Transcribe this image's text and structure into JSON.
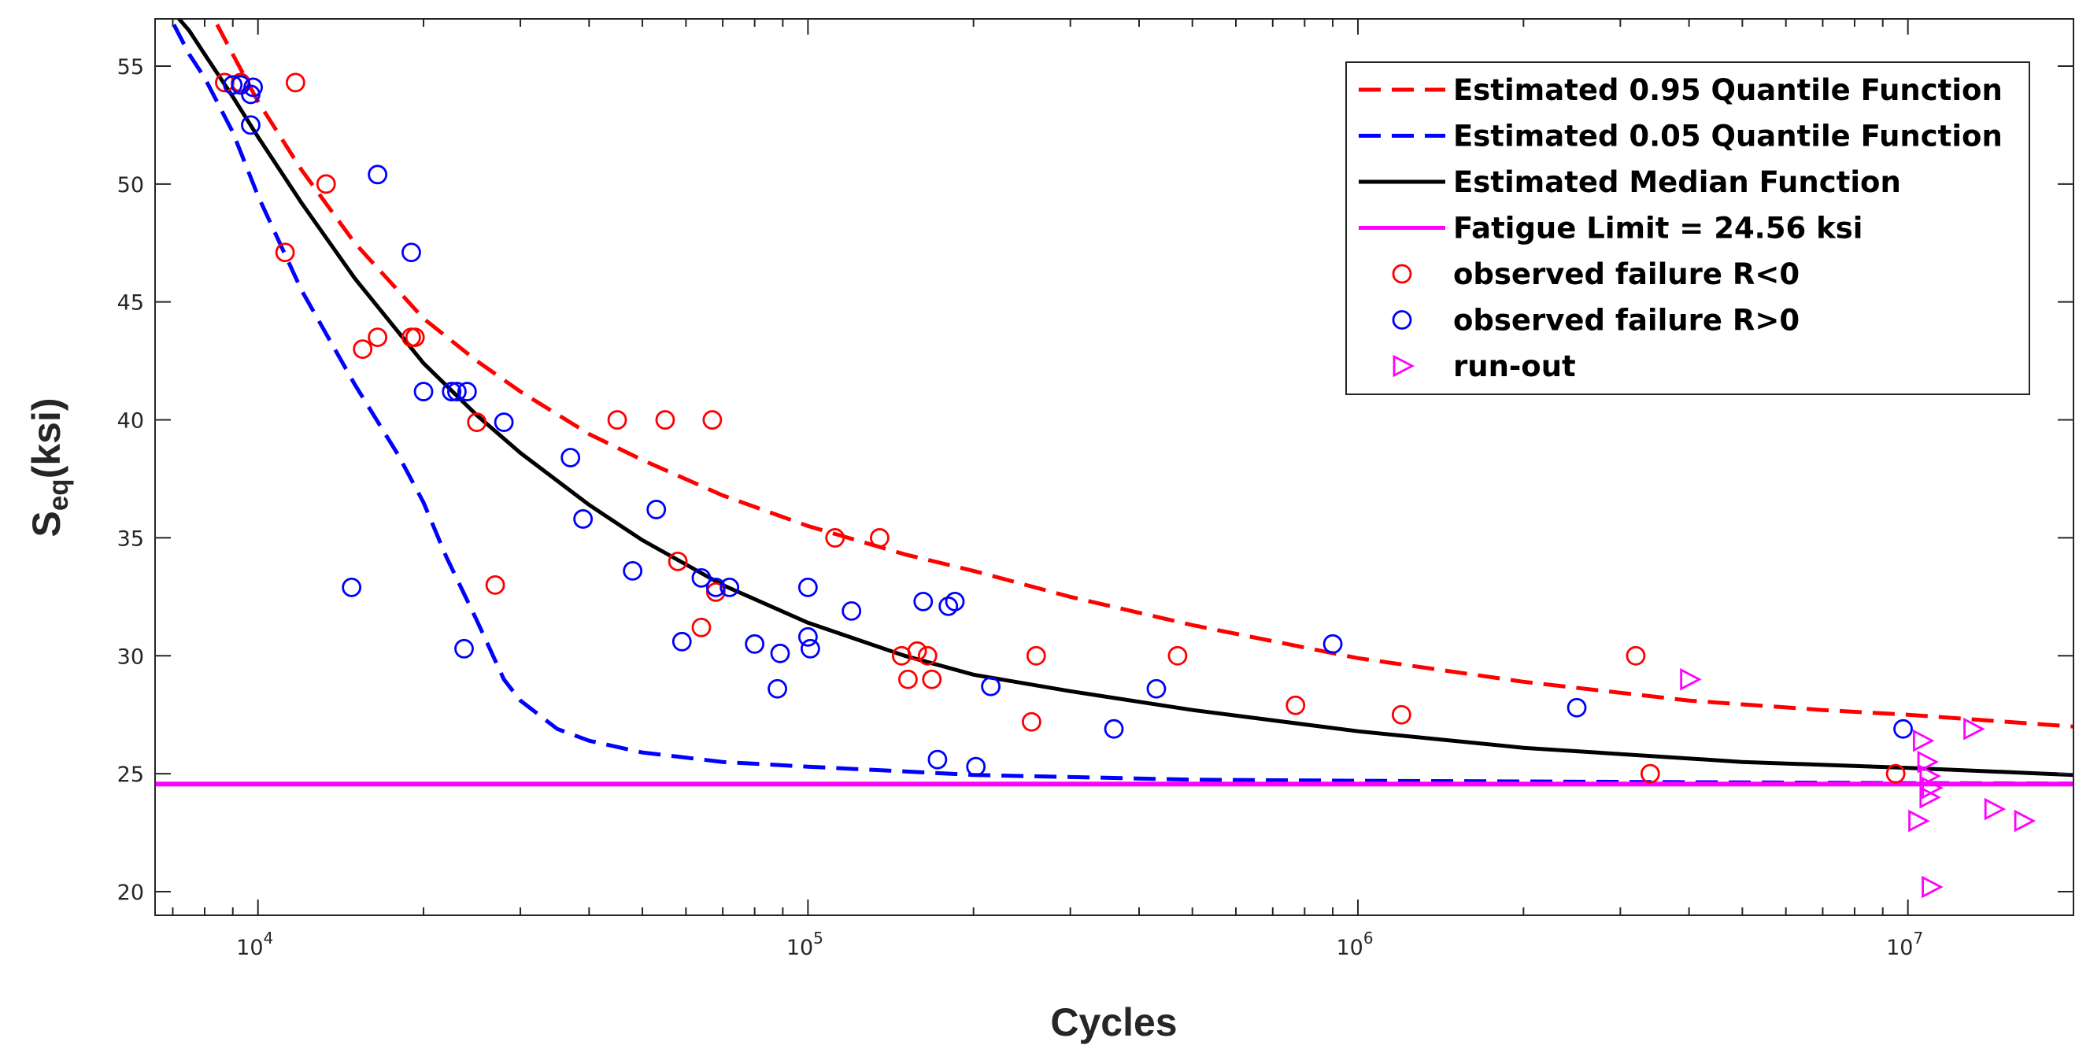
{
  "chart_data": {
    "type": "scatter",
    "xscale": "log",
    "xlim": [
      6500,
      20000000
    ],
    "ylim": [
      19,
      57
    ],
    "xlabel": "Cycles",
    "ylabel": {
      "main": "S",
      "sub": "eq",
      "rest": "(ksi)"
    },
    "x_ticks": [
      {
        "value": 10000,
        "base": "10",
        "exp": "4"
      },
      {
        "value": 100000,
        "base": "10",
        "exp": "5"
      },
      {
        "value": 1000000,
        "base": "10",
        "exp": "6"
      },
      {
        "value": 10000000,
        "base": "10",
        "exp": "7"
      }
    ],
    "y_ticks": [
      {
        "value": 20,
        "label": "20"
      },
      {
        "value": 25,
        "label": "25"
      },
      {
        "value": 30,
        "label": "30"
      },
      {
        "value": 35,
        "label": "35"
      },
      {
        "value": 40,
        "label": "40"
      },
      {
        "value": 45,
        "label": "45"
      },
      {
        "value": 50,
        "label": "50"
      },
      {
        "value": 55,
        "label": "55"
      }
    ],
    "fatigue_limit": 24.56,
    "colors": {
      "q95": "#ff0000",
      "q05": "#0000ff",
      "median": "#000000",
      "limit": "#ff00ff",
      "fail_neg": "#ff0000",
      "fail_pos": "#0000ff",
      "runout": "#ff00ff"
    },
    "legend": [
      {
        "label": "Estimated 0.95 Quantile Function",
        "marker": "dashed-line",
        "color": "#ff0000"
      },
      {
        "label": "Estimated 0.05 Quantile Function",
        "marker": "dashed-line",
        "color": "#0000ff"
      },
      {
        "label": "Estimated Median Function",
        "marker": "solid-line",
        "color": "#000000"
      },
      {
        "label": "Fatigue Limit = 24.56 ksi",
        "marker": "solid-line",
        "color": "#ff00ff"
      },
      {
        "label": "observed failure R<0",
        "marker": "circle",
        "color": "#ff0000"
      },
      {
        "label": "observed failure R>0",
        "marker": "circle",
        "color": "#0000ff"
      },
      {
        "label": "run-out",
        "marker": "triangle-right",
        "color": "#ff00ff"
      }
    ],
    "series": [
      {
        "name": "Estimated 0.95 Quantile Function",
        "kind": "line",
        "style": "dashed",
        "points": [
          [
            7900,
            58
          ],
          [
            9000,
            55.5
          ],
          [
            10000,
            53.5
          ],
          [
            12000,
            50.6
          ],
          [
            15000,
            47.5
          ],
          [
            20000,
            44.3
          ],
          [
            25000,
            42.5
          ],
          [
            30000,
            41.2
          ],
          [
            40000,
            39.4
          ],
          [
            50000,
            38.3
          ],
          [
            70000,
            36.8
          ],
          [
            100000,
            35.5
          ],
          [
            150000,
            34.3
          ],
          [
            200000,
            33.6
          ],
          [
            300000,
            32.5
          ],
          [
            500000,
            31.3
          ],
          [
            1000000,
            29.9
          ],
          [
            2000000,
            28.9
          ],
          [
            4000000,
            28.1
          ],
          [
            7000000,
            27.7
          ],
          [
            10000000,
            27.5
          ],
          [
            20000000,
            27.0
          ]
        ]
      },
      {
        "name": "Estimated 0.05 Quantile Function",
        "kind": "line",
        "style": "dashed",
        "points": [
          [
            6600,
            58
          ],
          [
            7500,
            55.5
          ],
          [
            8000,
            54.5
          ],
          [
            9000,
            52.2
          ],
          [
            10000,
            49.5
          ],
          [
            12000,
            45.5
          ],
          [
            15000,
            41.5
          ],
          [
            18000,
            38.5
          ],
          [
            20000,
            36.5
          ],
          [
            22000,
            34.2
          ],
          [
            25000,
            31.5
          ],
          [
            28000,
            29.0
          ],
          [
            30000,
            28.1
          ],
          [
            35000,
            26.9
          ],
          [
            40000,
            26.4
          ],
          [
            50000,
            25.9
          ],
          [
            70000,
            25.5
          ],
          [
            100000,
            25.3
          ],
          [
            150000,
            25.1
          ],
          [
            200000,
            24.95
          ],
          [
            500000,
            24.75
          ],
          [
            1000000,
            24.7
          ],
          [
            10000000,
            24.6
          ],
          [
            20000000,
            24.58
          ]
        ]
      },
      {
        "name": "Estimated Median Function",
        "kind": "line",
        "style": "solid",
        "points": [
          [
            6600,
            58
          ],
          [
            7500,
            56.5
          ],
          [
            8000,
            55.5
          ],
          [
            9000,
            53.7
          ],
          [
            10000,
            52.0
          ],
          [
            12000,
            49.2
          ],
          [
            15000,
            46.0
          ],
          [
            20000,
            42.4
          ],
          [
            25000,
            40.2
          ],
          [
            30000,
            38.6
          ],
          [
            40000,
            36.4
          ],
          [
            50000,
            34.9
          ],
          [
            70000,
            33.0
          ],
          [
            100000,
            31.4
          ],
          [
            150000,
            30.0
          ],
          [
            200000,
            29.2
          ],
          [
            300000,
            28.5
          ],
          [
            500000,
            27.7
          ],
          [
            1000000,
            26.8
          ],
          [
            2000000,
            26.1
          ],
          [
            5000000,
            25.5
          ],
          [
            10000000,
            25.25
          ],
          [
            20000000,
            24.95
          ]
        ]
      },
      {
        "name": "Fatigue Limit = 24.56 ksi",
        "kind": "line",
        "style": "solid",
        "points": [
          [
            6500,
            24.56
          ],
          [
            20000000,
            24.56
          ]
        ]
      },
      {
        "name": "observed failure R<0",
        "kind": "marker",
        "marker": "circle",
        "points": [
          [
            8700,
            54.3
          ],
          [
            9300,
            54.3
          ],
          [
            11700,
            54.3
          ],
          [
            13300,
            50.0
          ],
          [
            11200,
            47.1
          ],
          [
            15500,
            43.0
          ],
          [
            16500,
            43.5
          ],
          [
            19300,
            43.5
          ],
          [
            19000,
            43.5
          ],
          [
            25000,
            39.9
          ],
          [
            27000,
            33.0
          ],
          [
            45000,
            40.0
          ],
          [
            55000,
            40.0
          ],
          [
            67000,
            40.0
          ],
          [
            58000,
            34.0
          ],
          [
            64000,
            31.2
          ],
          [
            68000,
            32.7
          ],
          [
            112000,
            35.0
          ],
          [
            135000,
            35.0
          ],
          [
            148000,
            30.0
          ],
          [
            152000,
            29.0
          ],
          [
            158000,
            30.2
          ],
          [
            165000,
            30.0
          ],
          [
            168000,
            29.0
          ],
          [
            260000,
            30.0
          ],
          [
            255000,
            27.2
          ],
          [
            470000,
            30.0
          ],
          [
            770000,
            27.9
          ],
          [
            1200000,
            27.5
          ],
          [
            3200000,
            30.0
          ],
          [
            3400000,
            25.0
          ],
          [
            9500000,
            25.0
          ]
        ]
      },
      {
        "name": "observed failure R>0",
        "kind": "marker",
        "marker": "circle",
        "points": [
          [
            9000,
            54.2
          ],
          [
            9300,
            54.2
          ],
          [
            9700,
            53.8
          ],
          [
            9800,
            54.1
          ],
          [
            9700,
            52.5
          ],
          [
            16500,
            50.4
          ],
          [
            19000,
            47.1
          ],
          [
            14800,
            32.9
          ],
          [
            20000,
            41.2
          ],
          [
            22500,
            41.2
          ],
          [
            23000,
            41.2
          ],
          [
            24000,
            41.2
          ],
          [
            23700,
            30.3
          ],
          [
            28000,
            39.9
          ],
          [
            37000,
            38.4
          ],
          [
            39000,
            35.8
          ],
          [
            48000,
            33.6
          ],
          [
            53000,
            36.2
          ],
          [
            59000,
            30.6
          ],
          [
            64000,
            33.3
          ],
          [
            68000,
            32.9
          ],
          [
            72000,
            32.9
          ],
          [
            80000,
            30.5
          ],
          [
            88000,
            28.6
          ],
          [
            89000,
            30.1
          ],
          [
            100000,
            32.9
          ],
          [
            100000,
            30.8
          ],
          [
            101000,
            30.3
          ],
          [
            120000,
            31.9
          ],
          [
            162000,
            32.3
          ],
          [
            172000,
            25.6
          ],
          [
            180000,
            32.1
          ],
          [
            185000,
            32.3
          ],
          [
            202000,
            25.3
          ],
          [
            215000,
            28.7
          ],
          [
            360000,
            26.9
          ],
          [
            430000,
            28.6
          ],
          [
            900000,
            30.5
          ],
          [
            2500000,
            27.8
          ],
          [
            9800000,
            26.9
          ]
        ]
      },
      {
        "name": "run-out",
        "kind": "marker",
        "marker": "triangle-right",
        "points": [
          [
            4000000,
            29.0
          ],
          [
            10600000,
            26.4
          ],
          [
            10800000,
            25.5
          ],
          [
            10900000,
            24.9
          ],
          [
            11000000,
            24.4
          ],
          [
            10900000,
            24.0
          ],
          [
            10400000,
            23.0
          ],
          [
            11000000,
            20.2
          ],
          [
            13100000,
            26.9
          ],
          [
            14300000,
            23.5
          ],
          [
            16200000,
            23.0
          ]
        ]
      }
    ]
  }
}
